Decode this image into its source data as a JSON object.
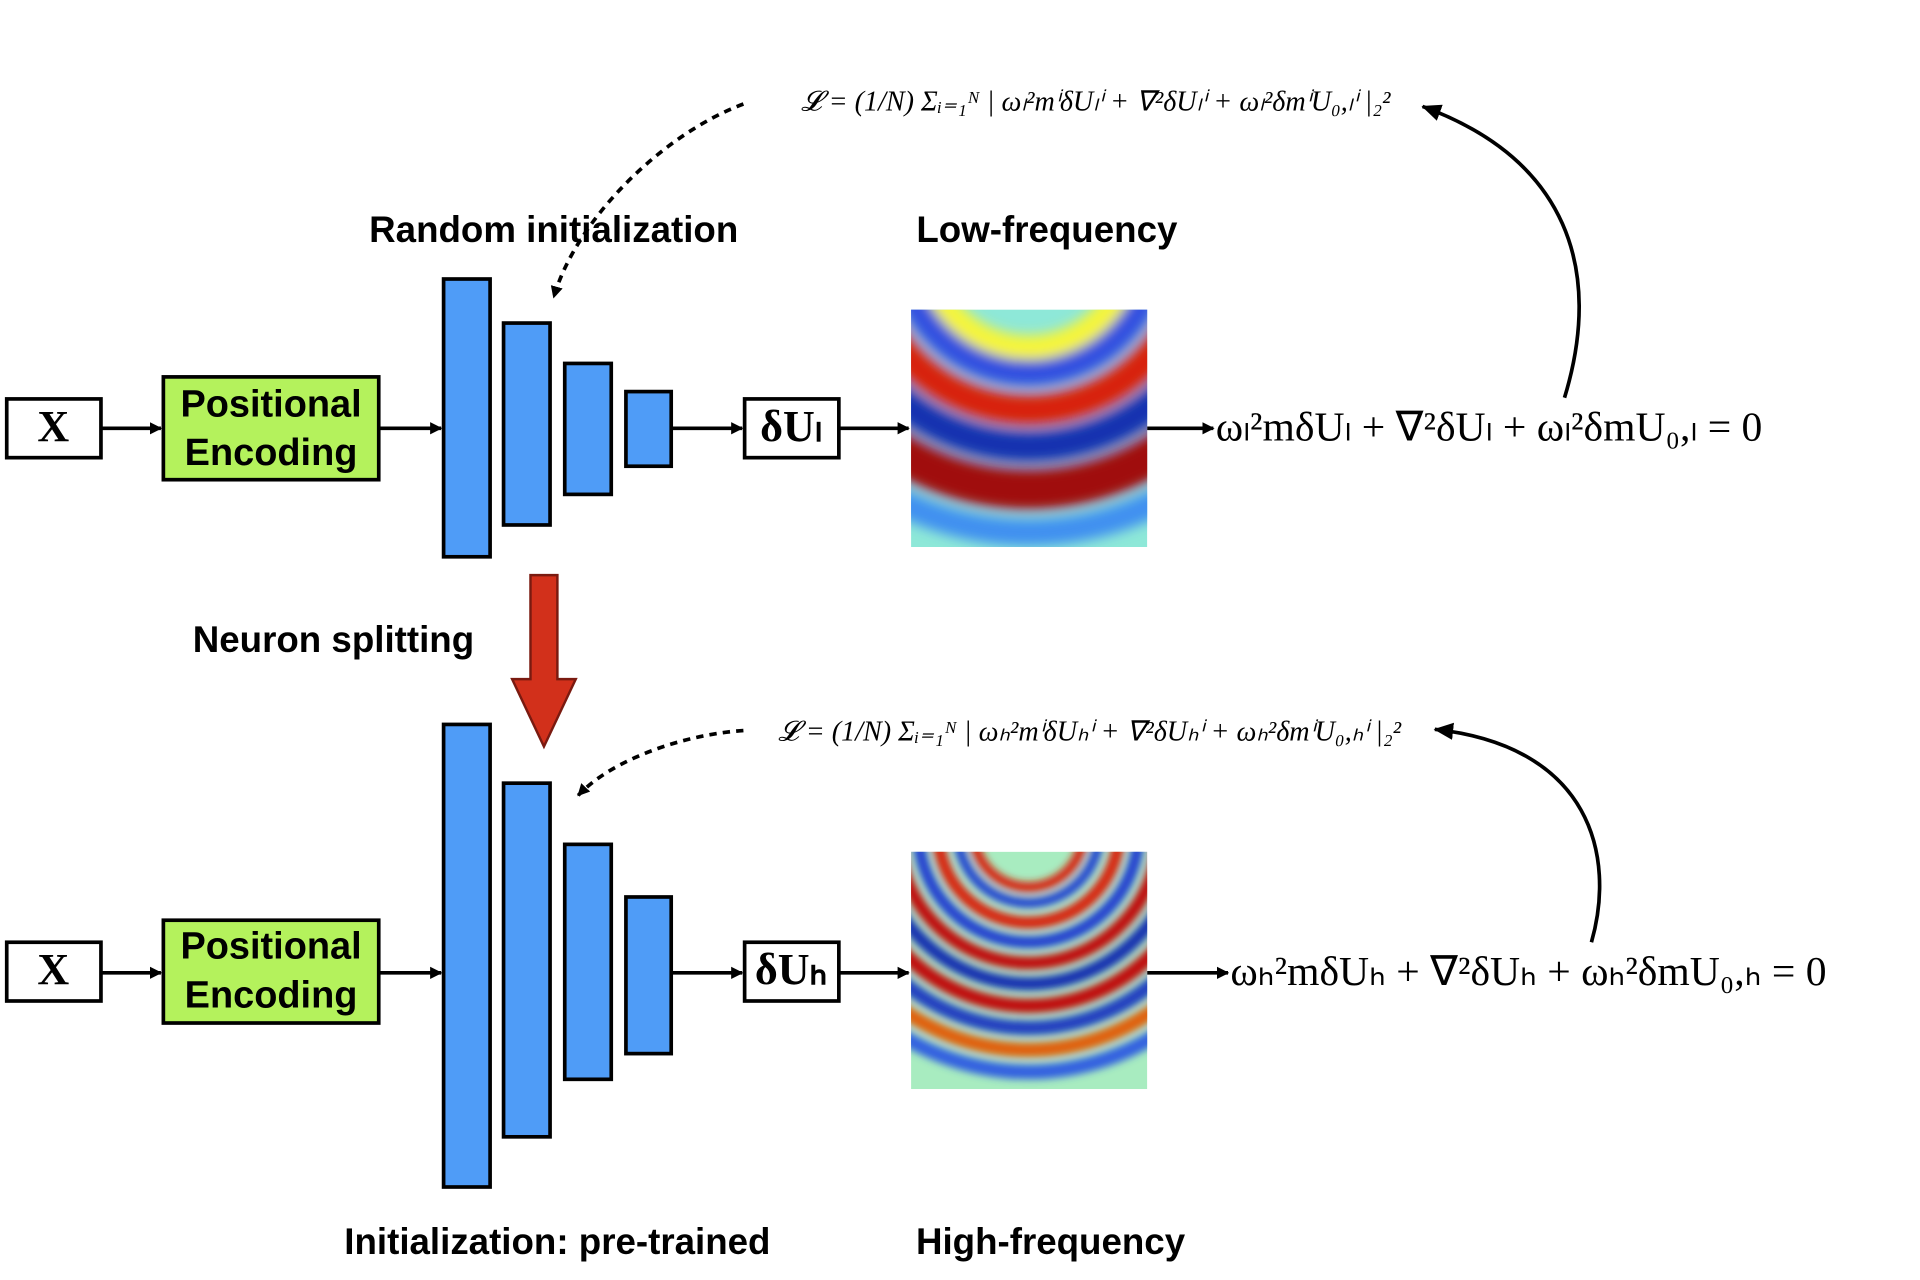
{
  "top": {
    "input": "X",
    "encoder": [
      "Positional",
      "Encoding"
    ],
    "init_label": "Random initialization",
    "output": "δUₗ",
    "field_label": "Low-frequency",
    "equation": "ωₗ²mδUₗ + ∇²δUₗ + ωₗ²δmU₀,ₗ = 0",
    "loss": "𝓛 = (1/N) Σᵢ₌₁ᴺ | ωₗ²mⁱδUₗⁱ + ∇²δUₗⁱ + ωₗ²δmⁱU₀,ₗⁱ |₂²"
  },
  "transition": "Neuron splitting",
  "bottom": {
    "input": "X",
    "encoder": [
      "Positional",
      "Encoding"
    ],
    "init_label": "Initialization: pre-trained",
    "output": "δUₕ",
    "field_label": "High-frequency",
    "equation": "ωₕ²mδUₕ + ∇²δUₕ + ωₕ²δmU₀,ₕ = 0",
    "loss": "𝓛 = (1/N) Σᵢ₌₁ᴺ | ωₕ²mⁱδUₕⁱ + ∇²δUₕⁱ + ωₕ²δmⁱU₀,ₕⁱ |₂²"
  }
}
